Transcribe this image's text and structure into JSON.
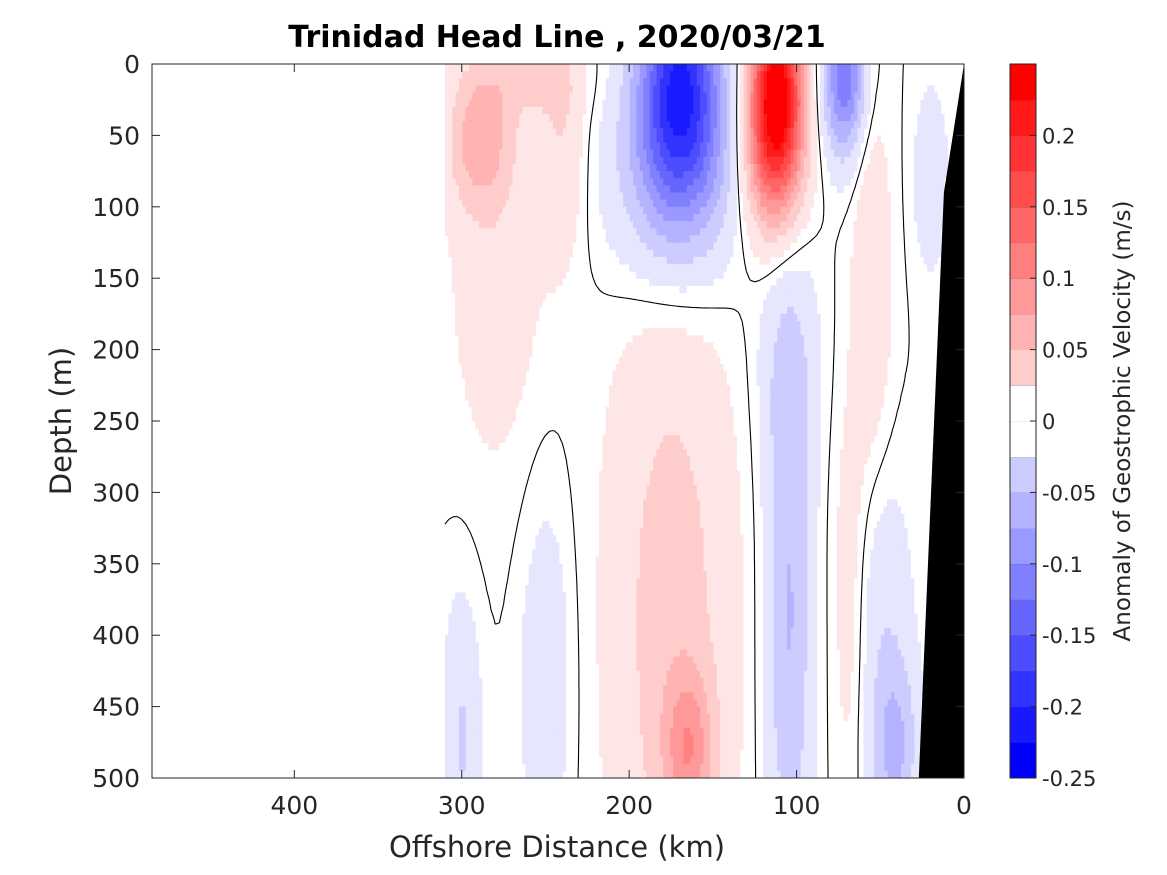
{
  "chart_data": {
    "type": "heatmap",
    "title": "Trinidad Head Line , 2020/03/21",
    "xlabel": "Offshore Distance (km)",
    "ylabel": "Depth (m)",
    "colorbar_label": "Anomaly of Geostrophic Velocity (m/s)",
    "xlim": [
      485,
      0
    ],
    "ylim": [
      0,
      500
    ],
    "x_reversed": true,
    "y_reversed": true,
    "xticks": [
      400,
      300,
      200,
      100,
      0
    ],
    "yticks": [
      0,
      50,
      100,
      150,
      200,
      250,
      300,
      350,
      400,
      450,
      500
    ],
    "clim": [
      -0.25,
      0.25
    ],
    "contour_step": 0.025,
    "colorbar_ticks": [
      -0.25,
      -0.2,
      -0.15,
      -0.1,
      -0.05,
      0,
      0.05,
      0.1,
      0.15,
      0.2
    ],
    "colormap": {
      "negative": "#0000ff",
      "zero": "#ffffff",
      "positive": "#ff0000"
    },
    "zero_contour_color": "#000000",
    "bathymetry_color": "#000000",
    "data_extent_km": [
      0,
      310
    ],
    "features": [
      {
        "x_km": 170,
        "depth_m": 15,
        "value": -0.2,
        "sx": 17,
        "sy": 55
      },
      {
        "x_km": 172,
        "depth_m": 80,
        "value": -0.07,
        "sx": 28,
        "sy": 55
      },
      {
        "x_km": 112,
        "depth_m": 15,
        "value": 0.22,
        "sx": 11,
        "sy": 50
      },
      {
        "x_km": 115,
        "depth_m": 60,
        "value": 0.1,
        "sx": 13,
        "sy": 45
      },
      {
        "x_km": 72,
        "depth_m": 10,
        "value": -0.13,
        "sx": 9,
        "sy": 38
      },
      {
        "x_km": 290,
        "depth_m": 55,
        "value": 0.065,
        "sx": 13,
        "sy": 32
      },
      {
        "x_km": 280,
        "depth_m": 130,
        "value": 0.028,
        "sx": 20,
        "sy": 110
      },
      {
        "x_km": 240,
        "depth_m": 55,
        "value": 0.035,
        "sx": 10,
        "sy": 60
      },
      {
        "x_km": 265,
        "depth_m": 10,
        "value": 0.03,
        "sx": 25,
        "sy": 20
      },
      {
        "x_km": 175,
        "depth_m": 390,
        "value": 0.05,
        "sx": 27,
        "sy": 175
      },
      {
        "x_km": 165,
        "depth_m": 480,
        "value": 0.075,
        "sx": 10,
        "sy": 38
      },
      {
        "x_km": 105,
        "depth_m": 390,
        "value": -0.065,
        "sx": 10,
        "sy": 135
      },
      {
        "x_km": 105,
        "depth_m": 210,
        "value": -0.03,
        "sx": 13,
        "sy": 60
      },
      {
        "x_km": 250,
        "depth_m": 430,
        "value": -0.032,
        "sx": 11,
        "sy": 90
      },
      {
        "x_km": 300,
        "depth_m": 470,
        "value": -0.04,
        "sx": 8,
        "sy": 70
      },
      {
        "x_km": 42,
        "depth_m": 480,
        "value": -0.065,
        "sx": 10,
        "sy": 45
      },
      {
        "x_km": 50,
        "depth_m": 380,
        "value": -0.03,
        "sx": 14,
        "sy": 70
      },
      {
        "x_km": 55,
        "depth_m": 150,
        "value": 0.035,
        "sx": 8,
        "sy": 90
      },
      {
        "x_km": 68,
        "depth_m": 370,
        "value": 0.03,
        "sx": 8,
        "sy": 100
      },
      {
        "x_km": 20,
        "depth_m": 80,
        "value": -0.035,
        "sx": 7,
        "sy": 45
      }
    ],
    "bathymetry": [
      [
        0,
        0
      ],
      [
        12,
        90
      ],
      [
        27,
        500
      ],
      [
        0,
        500
      ]
    ]
  }
}
